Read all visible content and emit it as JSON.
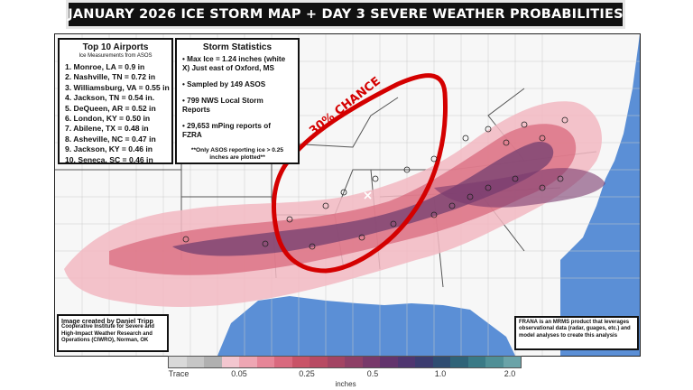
{
  "title": "JANUARY 2026 ICE STORM MAP + DAY 3 SEVERE WEATHER PROBABILITIES",
  "severe_label": "30% CHANCE",
  "airports": {
    "heading": "Top 10 Airports",
    "subheading": "Ice Measurements from ASOS",
    "items": [
      "1. Monroe, LA  = 0.9 in",
      "2. Nashville, TN = 0.72 in",
      "3. Williamsburg, VA = 0.55 in",
      "4. Jackson, TN = 0.54 in.",
      "5. DeQueen, AR = 0.52 in",
      "6. London, KY = 0.50 in",
      "7. Abilene, TX = 0.48 in",
      "8. Asheville, NC = 0.47 in",
      "9. Jackson, KY = 0.46 in",
      "10. Seneca, SC = 0.46 in"
    ]
  },
  "stats": {
    "heading": "Storm Statistics",
    "items": [
      "• Max Ice = 1.24 inches (white X) Just east of Oxford, MS",
      "• Sampled by 149 ASOS",
      "• 799 NWS Local Storm Reports",
      "• 29,653 mPing reports of FZRA"
    ],
    "note": "**Only ASOS reporting ice > 0.25 inches are plotted**"
  },
  "credit": {
    "line1": "Image created by Daniel Tripp",
    "line2": "Cooperative Institute for Severe and High-Impact Weather Research and Operations (CIWRO), Norman, OK"
  },
  "frana_note": "FRANA is an MRMS product that leverages observational data (radar, guages, etc.) and model analyses to create this analysis",
  "legend": {
    "units": "inches",
    "tick_labels": [
      "Trace",
      "0.05",
      "0.25",
      "0.5",
      "1.0",
      "2.0"
    ],
    "colors": [
      "#d9d9d9",
      "#c6c6c6",
      "#b0b0b0",
      "#f3c6cf",
      "#eea6b3",
      "#e68597",
      "#d9697e",
      "#c95367",
      "#b84a63",
      "#a34463",
      "#8e3f66",
      "#78396a",
      "#63346d",
      "#4f3670",
      "#3c3c70",
      "#2f4d72",
      "#2f6378",
      "#3a7a86",
      "#4f8f96",
      "#6aa3a8"
    ]
  },
  "colors": {
    "ice_light": "#f2b8c2",
    "ice_mid": "#d9697e",
    "ice_dark": "#6b3a6e",
    "water": "#5b8fd6",
    "severe_outline": "#d40000"
  }
}
